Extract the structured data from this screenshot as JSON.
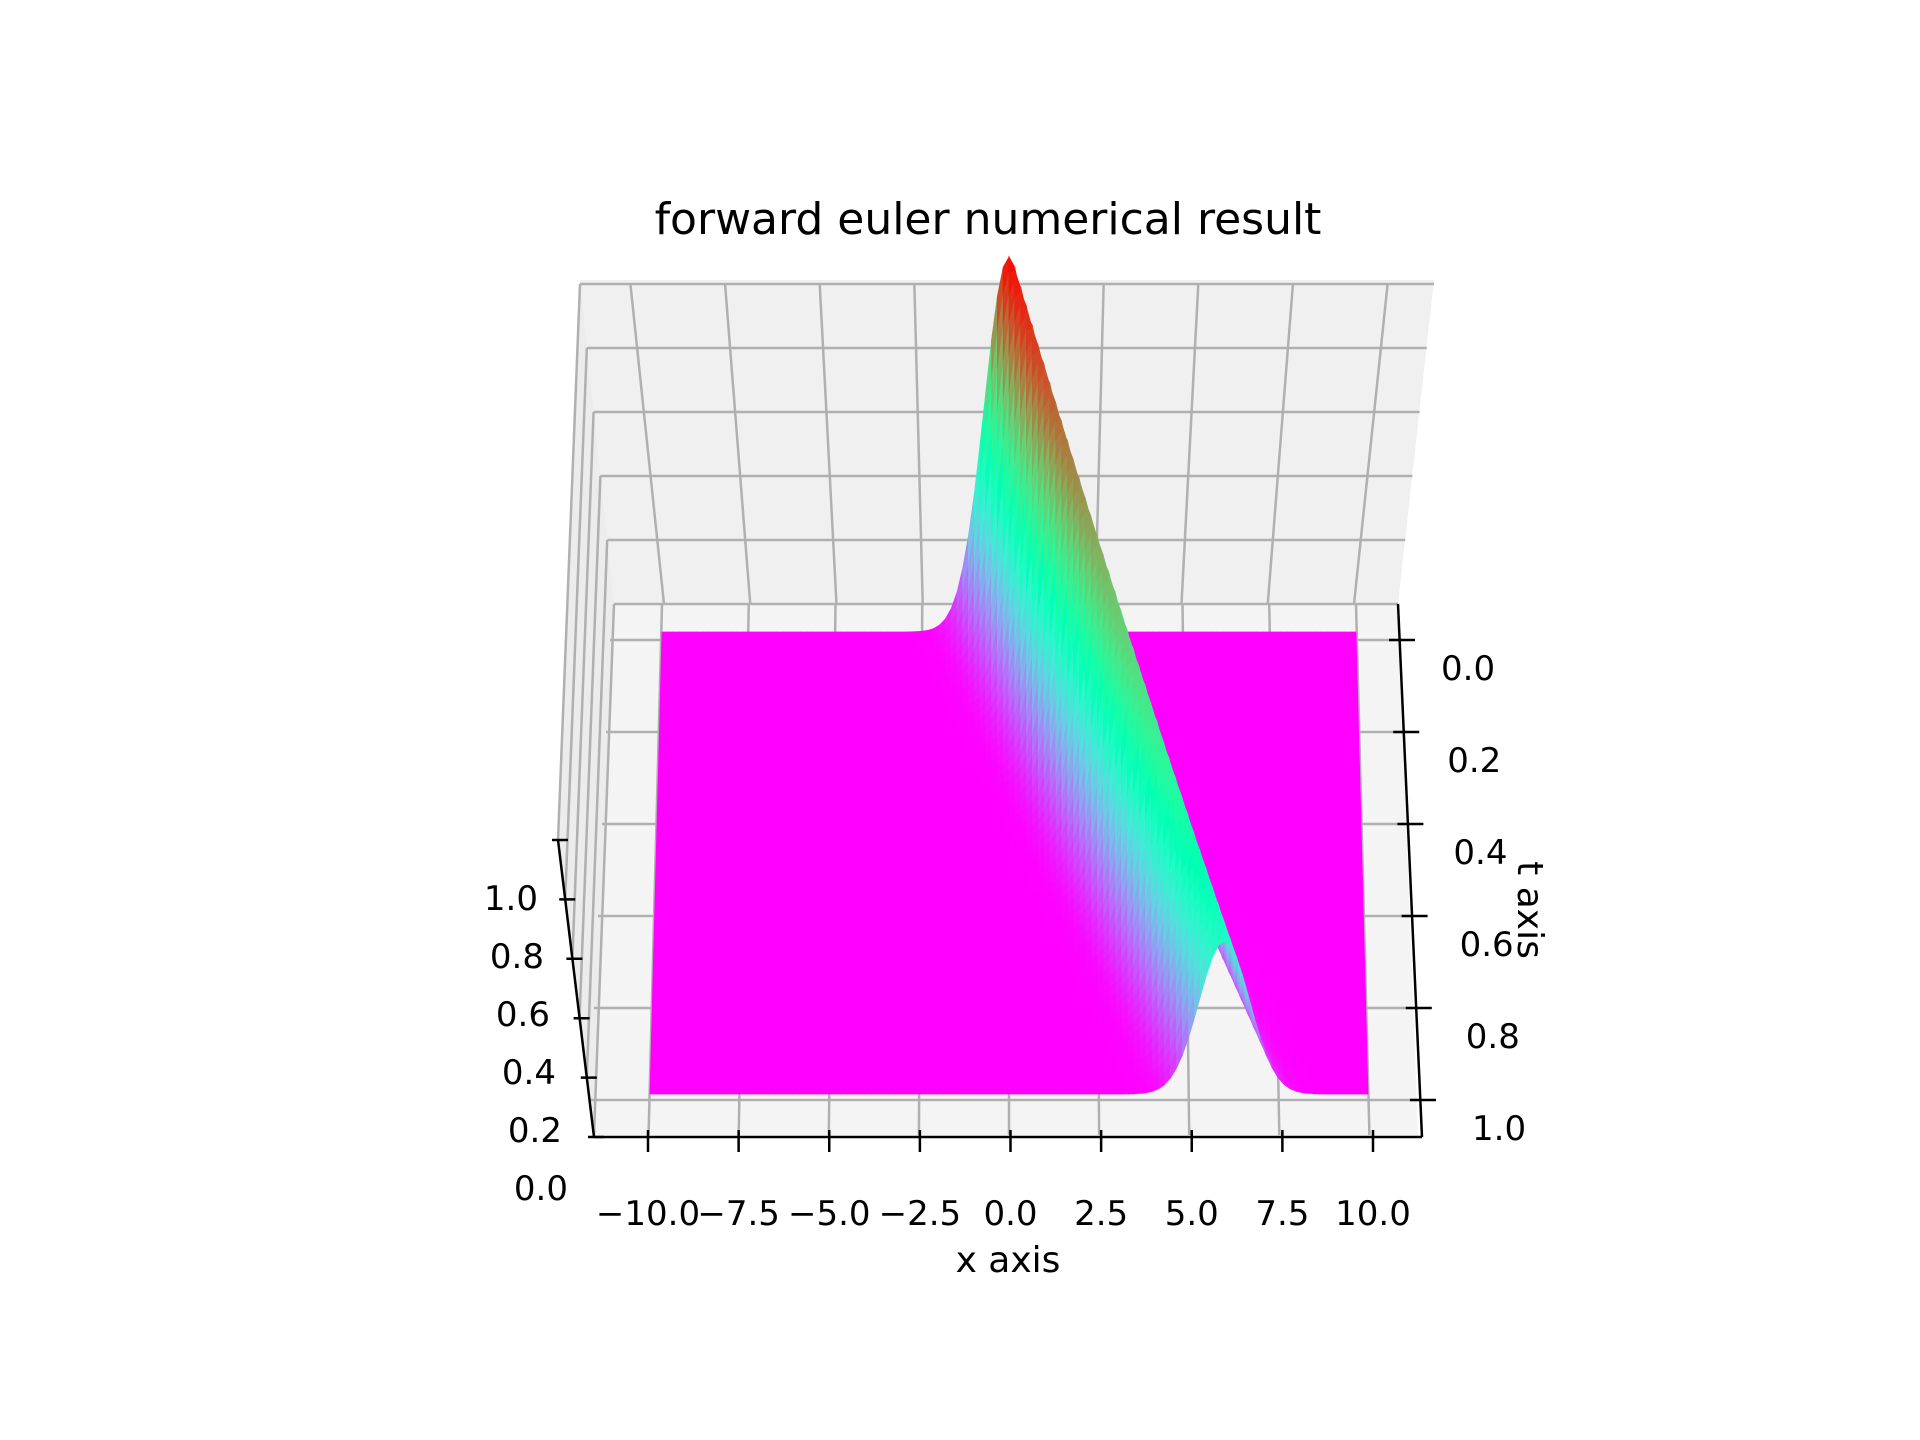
{
  "chart_data": {
    "type": "surface",
    "title": "forward euler numerical result",
    "xlabel": "x axis",
    "ylabel": "t axis",
    "zlabel": "",
    "x_ticks": [
      -10.0,
      -7.5,
      -5.0,
      -2.5,
      0.0,
      2.5,
      5.0,
      7.5,
      10.0
    ],
    "x_tick_labels": [
      "−10.0",
      "−7.5",
      "−5.0",
      "−2.5",
      "0.0",
      "2.5",
      "5.0",
      "7.5",
      "10.0"
    ],
    "t_ticks": [
      0.0,
      0.2,
      0.4,
      0.6,
      0.8,
      1.0
    ],
    "t_tick_labels": [
      "0.0",
      "0.2",
      "0.4",
      "0.6",
      "0.8",
      "1.0"
    ],
    "z_ticks": [
      0.0,
      0.2,
      0.4,
      0.6,
      0.8,
      1.0
    ],
    "z_tick_labels": [
      "0.0",
      "0.2",
      "0.4",
      "0.6",
      "0.8",
      "1.0"
    ],
    "xlim": [
      -10,
      10
    ],
    "tlim": [
      0,
      1
    ],
    "zlim": [
      0,
      1
    ],
    "colormap": "rainbow",
    "grid": true,
    "surface": {
      "description_values": {
        "pulse_center_at_t0": 0.0,
        "pulse_center_at_t1": 6.0,
        "peak_height_at_t0": 1.0,
        "peak_height_at_t1": 0.45,
        "pulse_width": 1.0
      },
      "series": [
        {
          "t": 0.0,
          "peak_x": 0.0,
          "peak_u": 1.0
        },
        {
          "t": 0.2,
          "peak_x": 1.2,
          "peak_u": 0.89
        },
        {
          "t": 0.4,
          "peak_x": 2.4,
          "peak_u": 0.78
        },
        {
          "t": 0.6,
          "peak_x": 3.6,
          "peak_u": 0.67
        },
        {
          "t": 0.8,
          "peak_x": 4.8,
          "peak_u": 0.56
        },
        {
          "t": 1.0,
          "peak_x": 6.0,
          "peak_u": 0.45
        }
      ]
    }
  }
}
